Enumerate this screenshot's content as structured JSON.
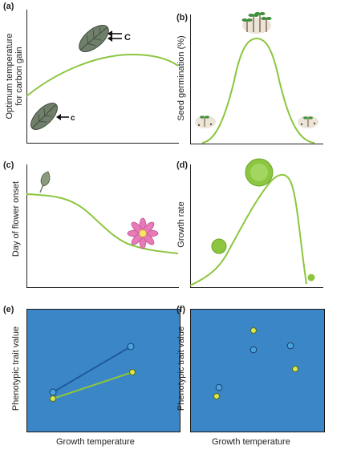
{
  "colors": {
    "curve": "#8cc63f",
    "panel_bg": "#3b86c7",
    "line_dark": "#1f5a9e",
    "dot_blue": "#4aa3df",
    "dot_yellow": "#d9e84a",
    "leaf": "#6f7f6a",
    "flower": "#e87ab8",
    "cell": "#8cc63f"
  },
  "panels": {
    "a": {
      "label": "(a)",
      "ylabel_line1": "Optimum temperature",
      "ylabel_line2": "for carbon gain",
      "upper_leaf_label": "C",
      "lower_leaf_label": "c"
    },
    "b": {
      "label": "(b)",
      "ylabel": "Seed germination (%)"
    },
    "c": {
      "label": "(c)",
      "ylabel": "Day of flower onset"
    },
    "d": {
      "label": "(d)",
      "ylabel": "Growth rate"
    },
    "e": {
      "label": "(e)",
      "ylabel": "Phenotypic trait value",
      "xlabel": "Growth temperature"
    },
    "f": {
      "label": "(f)",
      "ylabel": "Phenotypic trait value",
      "xlabel": "Growth temperature"
    }
  },
  "icons": {
    "leaf": "leaf-icon",
    "arrow": "arrow-left-icon",
    "seedlings": "seedling-icon",
    "flower": "flower-icon",
    "bud": "bud-icon",
    "cell": "cell-icon"
  }
}
